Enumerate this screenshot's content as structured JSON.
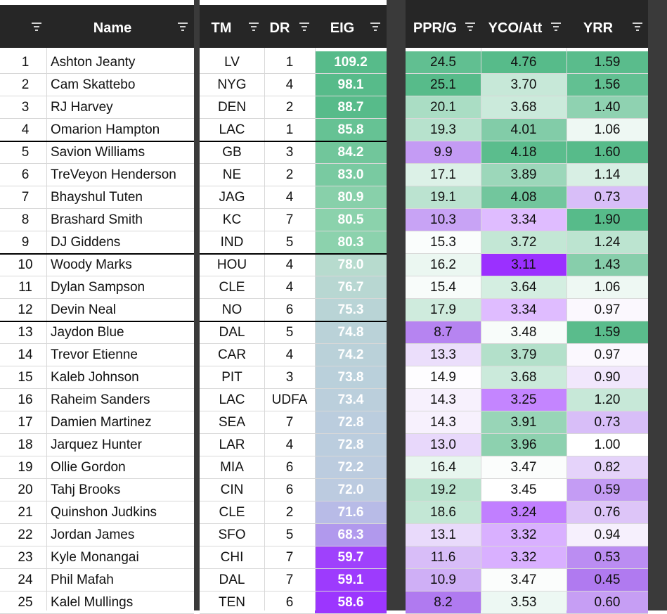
{
  "headers": {
    "name": "Name",
    "tm": "TM",
    "dr": "DR",
    "eig": "EIG",
    "pprg": "PPR/G",
    "ycoatt": "YCO/Att",
    "yrr": "YRR"
  },
  "icons": {
    "filter": "filter-icon"
  },
  "colors": {
    "header_bg": "#262626",
    "separator": "#3a3a3a",
    "grid_line": "#d8d8d8",
    "tier_line": "#000000",
    "scale_high": "#57bb8a",
    "scale_mid": "#ffffff",
    "scale_low": "#b07af0",
    "eig_low": "#9b30ff"
  },
  "rows": [
    {
      "rank": "1",
      "name": "Ashton Jeanty",
      "tm": "LV",
      "dr": "1",
      "eig": "109.2",
      "ppr": "24.5",
      "yco": "4.76",
      "yrr": "1.59"
    },
    {
      "rank": "2",
      "name": "Cam Skattebo",
      "tm": "NYG",
      "dr": "4",
      "eig": "98.1",
      "ppr": "25.1",
      "yco": "3.70",
      "yrr": "1.56"
    },
    {
      "rank": "3",
      "name": "RJ Harvey",
      "tm": "DEN",
      "dr": "2",
      "eig": "88.7",
      "ppr": "20.1",
      "yco": "3.68",
      "yrr": "1.40"
    },
    {
      "rank": "4",
      "name": "Omarion Hampton",
      "tm": "LAC",
      "dr": "1",
      "eig": "85.8",
      "ppr": "19.3",
      "yco": "4.01",
      "yrr": "1.06"
    },
    {
      "rank": "5",
      "name": "Savion Williams",
      "tm": "GB",
      "dr": "3",
      "eig": "84.2",
      "ppr": "9.9",
      "yco": "4.18",
      "yrr": "1.60"
    },
    {
      "rank": "6",
      "name": "TreVeyon Henderson",
      "tm": "NE",
      "dr": "2",
      "eig": "83.0",
      "ppr": "17.1",
      "yco": "3.89",
      "yrr": "1.14"
    },
    {
      "rank": "7",
      "name": "Bhayshul Tuten",
      "tm": "JAG",
      "dr": "4",
      "eig": "80.9",
      "ppr": "19.1",
      "yco": "4.08",
      "yrr": "0.73"
    },
    {
      "rank": "8",
      "name": "Brashard Smith",
      "tm": "KC",
      "dr": "7",
      "eig": "80.5",
      "ppr": "10.3",
      "yco": "3.34",
      "yrr": "1.90"
    },
    {
      "rank": "9",
      "name": "DJ Giddens",
      "tm": "IND",
      "dr": "5",
      "eig": "80.3",
      "ppr": "15.3",
      "yco": "3.72",
      "yrr": "1.24"
    },
    {
      "rank": "10",
      "name": "Woody Marks",
      "tm": "HOU",
      "dr": "4",
      "eig": "78.0",
      "ppr": "16.2",
      "yco": "3.11",
      "yrr": "1.43"
    },
    {
      "rank": "11",
      "name": "Dylan Sampson",
      "tm": "CLE",
      "dr": "4",
      "eig": "76.7",
      "ppr": "15.4",
      "yco": "3.64",
      "yrr": "1.06"
    },
    {
      "rank": "12",
      "name": "Devin Neal",
      "tm": "NO",
      "dr": "6",
      "eig": "75.3",
      "ppr": "17.9",
      "yco": "3.34",
      "yrr": "0.97"
    },
    {
      "rank": "13",
      "name": "Jaydon Blue",
      "tm": "DAL",
      "dr": "5",
      "eig": "74.8",
      "ppr": "8.7",
      "yco": "3.48",
      "yrr": "1.59"
    },
    {
      "rank": "14",
      "name": "Trevor Etienne",
      "tm": "CAR",
      "dr": "4",
      "eig": "74.2",
      "ppr": "13.3",
      "yco": "3.79",
      "yrr": "0.97"
    },
    {
      "rank": "15",
      "name": "Kaleb Johnson",
      "tm": "PIT",
      "dr": "3",
      "eig": "73.8",
      "ppr": "14.9",
      "yco": "3.68",
      "yrr": "0.90"
    },
    {
      "rank": "16",
      "name": "Raheim Sanders",
      "tm": "LAC",
      "dr": "UDFA",
      "eig": "73.4",
      "ppr": "14.3",
      "yco": "3.25",
      "yrr": "1.20"
    },
    {
      "rank": "17",
      "name": "Damien Martinez",
      "tm": "SEA",
      "dr": "7",
      "eig": "72.8",
      "ppr": "14.3",
      "yco": "3.91",
      "yrr": "0.73"
    },
    {
      "rank": "18",
      "name": "Jarquez Hunter",
      "tm": "LAR",
      "dr": "4",
      "eig": "72.8",
      "ppr": "13.0",
      "yco": "3.96",
      "yrr": "1.00"
    },
    {
      "rank": "19",
      "name": "Ollie Gordon",
      "tm": "MIA",
      "dr": "6",
      "eig": "72.2",
      "ppr": "16.4",
      "yco": "3.47",
      "yrr": "0.82"
    },
    {
      "rank": "20",
      "name": "Tahj Brooks",
      "tm": "CIN",
      "dr": "6",
      "eig": "72.0",
      "ppr": "19.2",
      "yco": "3.45",
      "yrr": "0.59"
    },
    {
      "rank": "21",
      "name": "Quinshon Judkins",
      "tm": "CLE",
      "dr": "2",
      "eig": "71.6",
      "ppr": "18.6",
      "yco": "3.24",
      "yrr": "0.76"
    },
    {
      "rank": "22",
      "name": "Jordan James",
      "tm": "SFO",
      "dr": "5",
      "eig": "68.3",
      "ppr": "13.1",
      "yco": "3.32",
      "yrr": "0.94"
    },
    {
      "rank": "23",
      "name": "Kyle Monangai",
      "tm": "CHI",
      "dr": "7",
      "eig": "59.7",
      "ppr": "11.6",
      "yco": "3.32",
      "yrr": "0.53"
    },
    {
      "rank": "24",
      "name": "Phil Mafah",
      "tm": "DAL",
      "dr": "7",
      "eig": "59.1",
      "ppr": "10.9",
      "yco": "3.47",
      "yrr": "0.45"
    },
    {
      "rank": "25",
      "name": "Kalel Mullings",
      "tm": "TEN",
      "dr": "6",
      "eig": "58.6",
      "ppr": "8.2",
      "yco": "3.53",
      "yrr": "0.60"
    }
  ]
}
